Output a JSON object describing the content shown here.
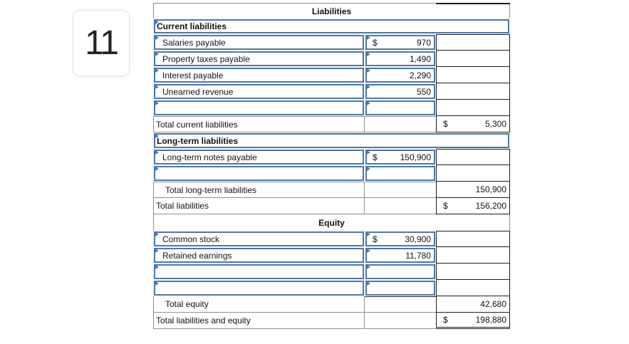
{
  "badge": {
    "number": "11"
  },
  "statement": {
    "title": "Liabilities",
    "current": {
      "header": "Current liabilities",
      "items": [
        {
          "label": "Salaries payable",
          "dollar": "$",
          "amount": "970"
        },
        {
          "label": "Property taxes payable",
          "dollar": "",
          "amount": "1,490"
        },
        {
          "label": "Interest payable",
          "dollar": "",
          "amount": "2,290"
        },
        {
          "label": "Unearned revenue",
          "dollar": "",
          "amount": "550"
        }
      ],
      "total": {
        "label": "Total current liabilities",
        "dollar": "$",
        "amount": "5,300"
      }
    },
    "long_term": {
      "header": "Long-term liabilities",
      "items": [
        {
          "label": "Long-term notes payable",
          "dollar": "$",
          "amount": "150,900"
        }
      ],
      "subtotal": {
        "label": "Total long-term liabilities",
        "dollar": "",
        "amount": "150,900"
      },
      "total": {
        "label": "Total liabilities",
        "dollar": "$",
        "amount": "156,200"
      }
    },
    "equity": {
      "header": "Equity",
      "items": [
        {
          "label": "Common stock",
          "dollar": "$",
          "amount": "30,900"
        },
        {
          "label": "Retained earnings",
          "dollar": "",
          "amount": "11,780"
        }
      ],
      "subtotal": {
        "label": "Total equity",
        "dollar": "",
        "amount": "42,680"
      },
      "total": {
        "label": "Total liabilities and equity",
        "dollar": "$",
        "amount": "198,880"
      }
    }
  },
  "colors": {
    "input_border_blue": "#4a77ab",
    "grid_gray": "#8f8f8f",
    "grid_black": "#1c1c1c"
  }
}
